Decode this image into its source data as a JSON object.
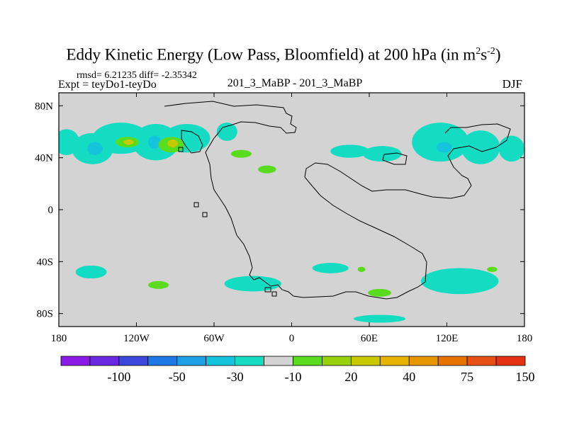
{
  "header": {
    "title_main": "Eddy Kinetic Energy (Low Pass, Bloomfield) at 200 hPa (in m",
    "title_sup1": "2",
    "title_mid": "s",
    "title_sup2": "-2",
    "title_end": ")",
    "rmsd_line": "rmsd= 6.21235 diff= -2.35342",
    "expt_line": "Expt = teyDo1-teyDo",
    "center_label": "201_3_MaBP - 201_3_MaBP",
    "season": "DJF"
  },
  "chart_data": {
    "type": "heatmap",
    "subtype": "filled contour map",
    "xaxis": {
      "range": [
        0,
        360
      ],
      "ticks": [
        {
          "value": 0,
          "label": "180"
        },
        {
          "value": 60,
          "label": "120W"
        },
        {
          "value": 120,
          "label": "60W"
        },
        {
          "value": 180,
          "label": "0"
        },
        {
          "value": 240,
          "label": "60E"
        },
        {
          "value": 300,
          "label": "120E"
        },
        {
          "value": 360,
          "label": "180"
        }
      ]
    },
    "yaxis": {
      "range": [
        -90,
        90
      ],
      "ticks": [
        {
          "value": 80,
          "label": "80N"
        },
        {
          "value": 40,
          "label": "40N"
        },
        {
          "value": 0,
          "label": "0"
        },
        {
          "value": -40,
          "label": "40S"
        },
        {
          "value": -80,
          "label": "80S"
        }
      ]
    },
    "background_color": "#d3d3d3",
    "colorbar": {
      "colors": [
        "#8c1ae6",
        "#6a28e0",
        "#3c46dc",
        "#1e78e6",
        "#1ea0e6",
        "#14c3dc",
        "#14dcc3",
        "#d3d3d3",
        "#5adc1e",
        "#96d20a",
        "#c8c800",
        "#e6b400",
        "#e69600",
        "#e67300",
        "#e65014",
        "#e63214"
      ],
      "labels": [
        {
          "index": 2,
          "text": "-100"
        },
        {
          "index": 4,
          "text": "-50"
        },
        {
          "index": 6,
          "text": "-30"
        },
        {
          "index": 8,
          "text": "-10"
        },
        {
          "index": 10,
          "text": "20"
        },
        {
          "index": 12,
          "text": "40"
        },
        {
          "index": 14,
          "text": "75"
        },
        {
          "index": 16,
          "text": "150"
        }
      ]
    },
    "regions": [
      {
        "level": -10,
        "color": "#14dcc3",
        "lon": 6,
        "lat": 52,
        "rlon": 10,
        "rlat": 10
      },
      {
        "level": -10,
        "color": "#14dcc3",
        "lon": 26,
        "lat": 47,
        "rlon": 16,
        "rlat": 12
      },
      {
        "level": -10,
        "color": "#14dcc3",
        "lon": 48,
        "lat": 55,
        "rlon": 22,
        "rlat": 12
      },
      {
        "level": -10,
        "color": "#14dcc3",
        "lon": 75,
        "lat": 52,
        "rlon": 18,
        "rlat": 14
      },
      {
        "level": -10,
        "color": "#14dcc3",
        "lon": 99,
        "lat": 55,
        "rlon": 18,
        "rlat": 11
      },
      {
        "level": -10,
        "color": "#14dcc3",
        "lon": 130,
        "lat": 60,
        "rlon": 8,
        "rlat": 7
      },
      {
        "level": -10,
        "color": "#14dcc3",
        "lon": 225,
        "lat": 45,
        "rlon": 15,
        "rlat": 5
      },
      {
        "level": -10,
        "color": "#14dcc3",
        "lon": 250,
        "lat": 43,
        "rlon": 15,
        "rlat": 6
      },
      {
        "level": -10,
        "color": "#14dcc3",
        "lon": 295,
        "lat": 52,
        "rlon": 22,
        "rlat": 15
      },
      {
        "level": -10,
        "color": "#14dcc3",
        "lon": 326,
        "lat": 48,
        "rlon": 15,
        "rlat": 13
      },
      {
        "level": -10,
        "color": "#14dcc3",
        "lon": 350,
        "lat": 47,
        "rlon": 10,
        "rlat": 10
      },
      {
        "level": -10,
        "color": "#14dcc3",
        "lon": 25,
        "lat": -48,
        "rlon": 12,
        "rlat": 5
      },
      {
        "level": -10,
        "color": "#14dcc3",
        "lon": 150,
        "lat": -57,
        "rlon": 22,
        "rlat": 6
      },
      {
        "level": -10,
        "color": "#14dcc3",
        "lon": 210,
        "lat": -45,
        "rlon": 14,
        "rlat": 4
      },
      {
        "level": -10,
        "color": "#14dcc3",
        "lon": 310,
        "lat": -55,
        "rlon": 30,
        "rlat": 10
      },
      {
        "level": -10,
        "color": "#14dcc3",
        "lon": 248,
        "lat": -84,
        "rlon": 20,
        "rlat": 3
      },
      {
        "level": -30,
        "color": "#14c3dc",
        "lon": 28,
        "lat": 47,
        "rlon": 6,
        "rlat": 5
      },
      {
        "level": -30,
        "color": "#14c3dc",
        "lon": 74,
        "lat": 52,
        "rlon": 5,
        "rlat": 5
      },
      {
        "level": -30,
        "color": "#14c3dc",
        "lon": 298,
        "lat": 48,
        "rlon": 6,
        "rlat": 4
      },
      {
        "level": 20,
        "color": "#5adc1e",
        "lon": 53,
        "lat": 52,
        "rlon": 9,
        "rlat": 4
      },
      {
        "level": 20,
        "color": "#5adc1e",
        "lon": 87,
        "lat": 50,
        "rlon": 10,
        "rlat": 6
      },
      {
        "level": 20,
        "color": "#5adc1e",
        "lon": 141,
        "lat": 43,
        "rlon": 8,
        "rlat": 3
      },
      {
        "level": 20,
        "color": "#5adc1e",
        "lon": 161,
        "lat": 31,
        "rlon": 7,
        "rlat": 3
      },
      {
        "level": 20,
        "color": "#5adc1e",
        "lon": 77,
        "lat": -58,
        "rlon": 8,
        "rlat": 3
      },
      {
        "level": 20,
        "color": "#5adc1e",
        "lon": 248,
        "lat": -64,
        "rlon": 9,
        "rlat": 3
      },
      {
        "level": 20,
        "color": "#5adc1e",
        "lon": 234,
        "lat": -46,
        "rlon": 3,
        "rlat": 2
      },
      {
        "level": 20,
        "color": "#5adc1e",
        "lon": 335,
        "lat": -46,
        "rlon": 4,
        "rlat": 2
      },
      {
        "level": 40,
        "color": "#c8c800",
        "lon": 88,
        "lat": 51,
        "rlon": 4,
        "rlat": 3
      },
      {
        "level": 40,
        "color": "#c8c800",
        "lon": 54,
        "lat": 52,
        "rlon": 4,
        "rlat": 2
      }
    ]
  }
}
